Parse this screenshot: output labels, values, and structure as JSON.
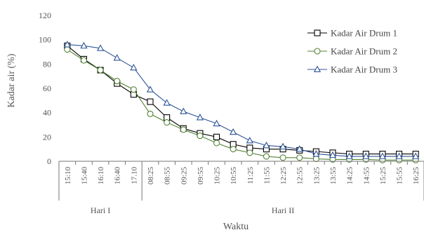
{
  "chart_data": {
    "type": "line",
    "xlabel": "Waktu",
    "ylabel": "Kadar air (%)",
    "ylim": [
      0,
      120
    ],
    "yticks": [
      0,
      20,
      40,
      60,
      80,
      100,
      120
    ],
    "grid": false,
    "legend_position": "right",
    "categories": [
      "15:10",
      "15:40",
      "16:10",
      "16:40",
      "17.10",
      "08:25",
      "08:55",
      "09:25",
      "09:55",
      "10:25",
      "10:55",
      "11:25",
      "11:55",
      "12:25",
      "12:55",
      "13:25",
      "13:55",
      "14:25",
      "14:55",
      "15:25",
      "15:55",
      "16:25"
    ],
    "groups": [
      {
        "label": "Hari I",
        "start": 0,
        "end": 4
      },
      {
        "label": "Hari II",
        "start": 5,
        "end": 21
      }
    ],
    "series": [
      {
        "name": "Kadar Air Drum 1",
        "marker": "square",
        "color": "#000000",
        "values": [
          95,
          84,
          75,
          64,
          55,
          49,
          36,
          27,
          23,
          20,
          14,
          11,
          10,
          10,
          9,
          8,
          7,
          6,
          6,
          6,
          6,
          6
        ]
      },
      {
        "name": "Kadar Air Drum 2",
        "marker": "circle",
        "color": "#548235",
        "values": [
          92,
          83,
          75,
          66,
          59,
          39,
          32,
          26,
          21,
          15,
          10,
          7,
          4,
          3,
          3,
          2,
          1.5,
          1.5,
          1.5,
          1,
          1,
          1
        ]
      },
      {
        "name": "Kadar Air Drum 3",
        "marker": "triangle",
        "color": "#2F5597",
        "values": [
          96,
          95,
          93,
          85,
          77,
          59,
          48,
          41,
          36,
          31,
          24,
          17,
          13,
          12,
          10,
          6,
          5,
          4,
          4,
          4,
          4,
          4
        ]
      }
    ]
  }
}
